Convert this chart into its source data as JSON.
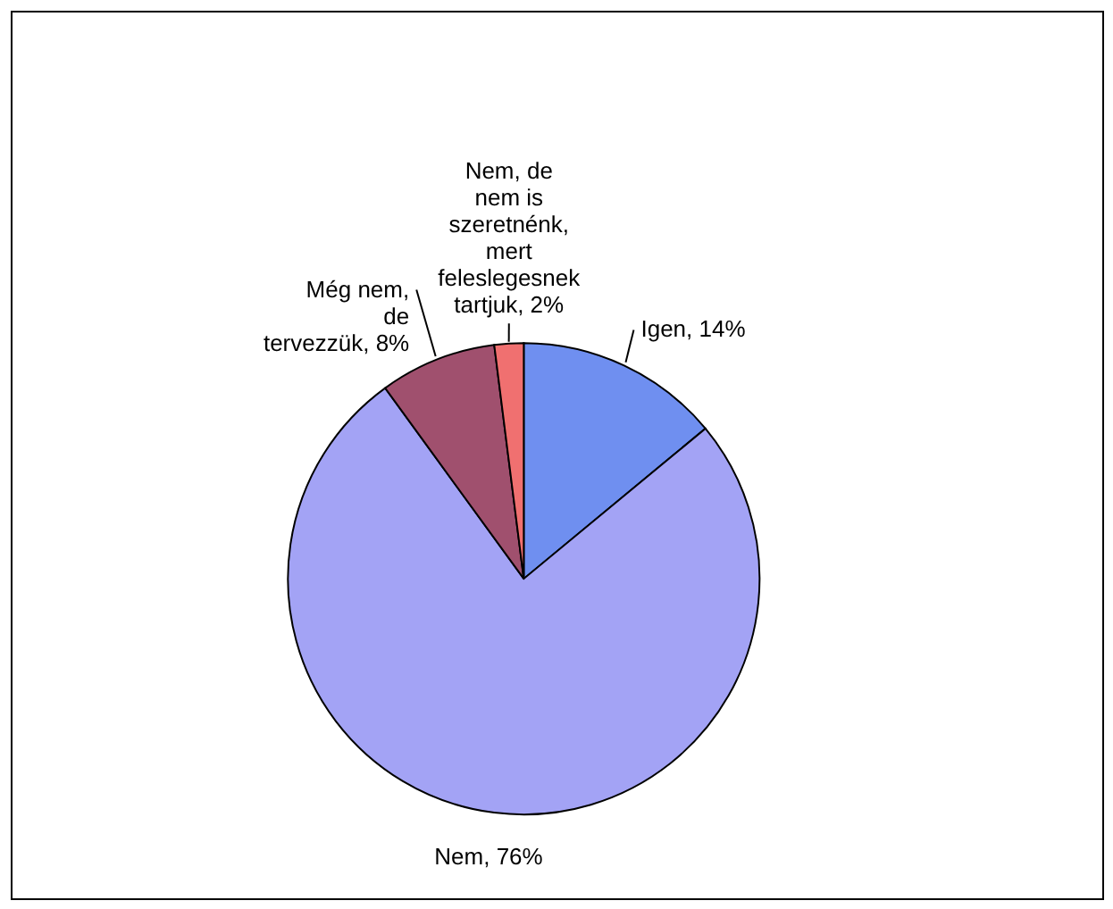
{
  "chart_data": {
    "type": "pie",
    "categories": [
      "Igen",
      "Nem",
      "Még nem, de tervezzük",
      "Nem, de nem is szeretnénk, mert feleslegesnek tartjuk"
    ],
    "values": [
      14,
      76,
      8,
      2
    ],
    "colors": [
      "#6f8ff0",
      "#a3a3f5",
      "#a0506e",
      "#f07070"
    ],
    "value_labels": [
      "14%",
      "76%",
      "8%",
      "2%"
    ]
  }
}
